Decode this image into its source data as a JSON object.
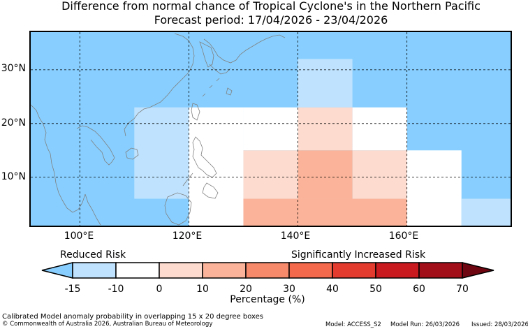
{
  "title_line1": "Difference from normal chance of Tropical Cyclone's in the Northern Pacific",
  "title_line2": "Forecast period: 17/04/2026 - 23/04/2026",
  "lat_labels": [
    "30°N",
    "20°N",
    "10°N"
  ],
  "lon_labels": [
    "100°E",
    "120°E",
    "140°E",
    "160°E"
  ],
  "risk_labels": {
    "reduced": "Reduced Risk",
    "increased": "Significantly Increased Risk"
  },
  "colorbar": {
    "title": "Percentage (%)",
    "ticks": [
      "-15",
      "-10",
      "0",
      "10",
      "20",
      "30",
      "40",
      "50",
      "60",
      "70"
    ],
    "colors": [
      "#88cfff",
      "#bfe3fe",
      "#ffffff",
      "#fddccf",
      "#fbb49a",
      "#f88a6c",
      "#f4694b",
      "#e33c2f",
      "#c81a1f",
      "#a20f18",
      "#6d0610"
    ]
  },
  "map_extent": {
    "lon_min": 91,
    "lon_max": 179,
    "lat_min": 1,
    "lat_max": 37
  },
  "background_color": "#88cfff",
  "anomaly_cells": [
    {
      "lon": [
        140,
        150
      ],
      "lat": [
        23,
        32
      ],
      "color": "#bfe3fe"
    },
    {
      "lon": [
        110,
        120
      ],
      "lat": [
        6,
        23
      ],
      "color": "#bfe3fe"
    },
    {
      "lon": [
        120,
        130
      ],
      "lat": [
        1,
        23
      ],
      "color": "#ffffff"
    },
    {
      "lon": [
        130,
        140
      ],
      "lat": [
        15,
        23
      ],
      "color": "#ffffff"
    },
    {
      "lon": [
        150,
        160
      ],
      "lat": [
        15,
        23
      ],
      "color": "#ffffff"
    },
    {
      "lon": [
        160,
        170
      ],
      "lat": [
        1,
        15
      ],
      "color": "#ffffff"
    },
    {
      "lon": [
        170,
        179
      ],
      "lat": [
        1,
        6
      ],
      "color": "#bfe3fe"
    },
    {
      "lon": [
        140,
        150
      ],
      "lat": [
        15,
        23
      ],
      "color": "#fddccf"
    },
    {
      "lon": [
        130,
        140
      ],
      "lat": [
        6,
        15
      ],
      "color": "#fddccf"
    },
    {
      "lon": [
        150,
        160
      ],
      "lat": [
        6,
        15
      ],
      "color": "#fddccf"
    },
    {
      "lon": [
        140,
        150
      ],
      "lat": [
        6,
        15
      ],
      "color": "#fbb49a"
    },
    {
      "lon": [
        130,
        160
      ],
      "lat": [
        1,
        6
      ],
      "color": "#fbb49a"
    }
  ],
  "footer": {
    "method": "Calibrated Model anomaly probability in overlapping 15 x 20 degree boxes",
    "copyright": "© Commonwealth of Australia 2026, Australian Bureau of Meteorology",
    "model": "Model: ACCESS_S2",
    "model_run": "Model Run: 26/03/2026",
    "issued": "Issued: 28/03/2026"
  }
}
